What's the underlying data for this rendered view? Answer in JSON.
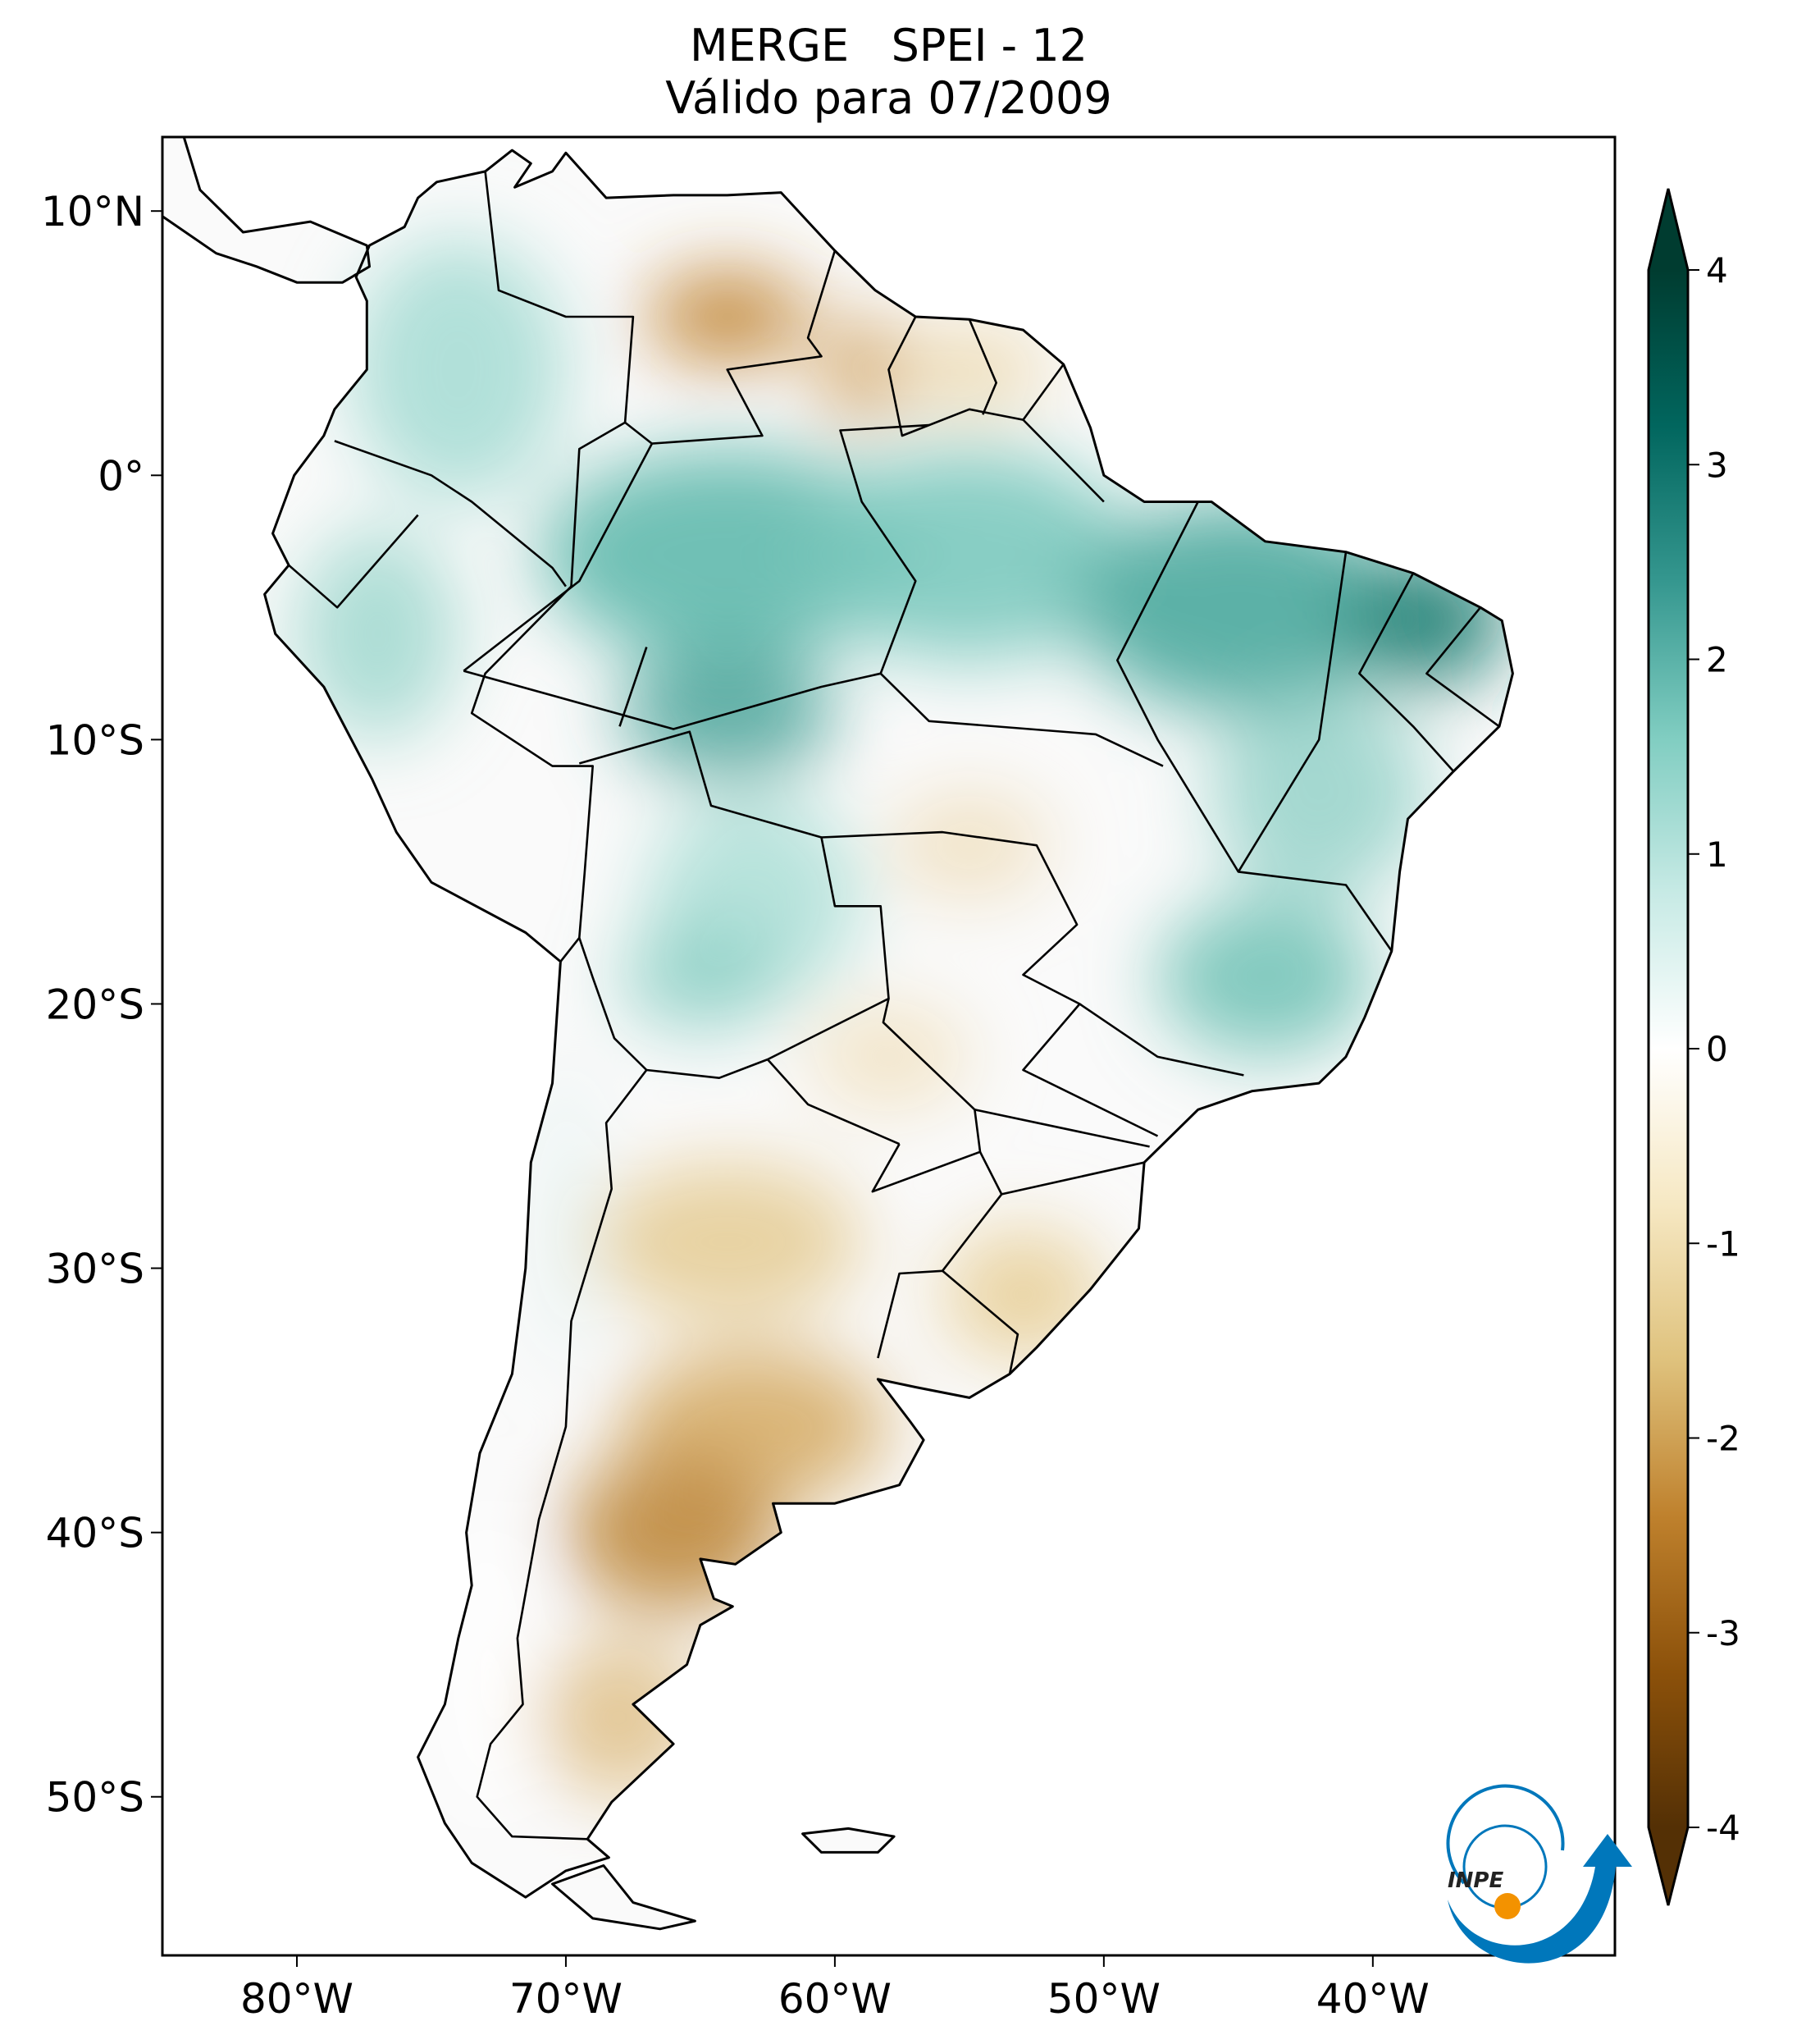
{
  "header": {
    "title": "MERGE   SPEI - 12",
    "subtitle": "Válido para 07/2009"
  },
  "chart_data": {
    "type": "heatmap",
    "variable": "SPEI - 12",
    "xlim": [
      -85,
      -31
    ],
    "ylim": [
      -56,
      12.8
    ],
    "x_ticks": [
      {
        "value": -80,
        "label": "80°W"
      },
      {
        "value": -70,
        "label": "70°W"
      },
      {
        "value": -60,
        "label": "60°W"
      },
      {
        "value": -50,
        "label": "50°W"
      },
      {
        "value": -40,
        "label": "40°W"
      }
    ],
    "y_ticks": [
      {
        "value": 10,
        "label": "10°N"
      },
      {
        "value": 0,
        "label": "0°"
      },
      {
        "value": -10,
        "label": "10°S"
      },
      {
        "value": -20,
        "label": "20°S"
      },
      {
        "value": -30,
        "label": "30°S"
      },
      {
        "value": -40,
        "label": "40°S"
      },
      {
        "value": -50,
        "label": "50°S"
      }
    ],
    "colorbar": {
      "range": [
        -4,
        4
      ],
      "extend": "both",
      "ticks": [
        {
          "value": 4,
          "label": "4"
        },
        {
          "value": 3,
          "label": "3"
        },
        {
          "value": 2,
          "label": "2"
        },
        {
          "value": 1,
          "label": "1"
        },
        {
          "value": 0,
          "label": "0"
        },
        {
          "value": -1,
          "label": "-1"
        },
        {
          "value": -2,
          "label": "-2"
        },
        {
          "value": -3,
          "label": "-3"
        },
        {
          "value": -4,
          "label": "-4"
        }
      ],
      "colormap": [
        "#543005",
        "#8c510a",
        "#bf812d",
        "#dfc27d",
        "#f6e8c3",
        "#ffffff",
        "#c7eae5",
        "#80cdc1",
        "#35978f",
        "#01665e",
        "#003c30"
      ]
    },
    "grid": false
  },
  "logo": {
    "text": "INPE",
    "colors": {
      "blue": "#0077bb",
      "orange": "#f39200"
    }
  }
}
